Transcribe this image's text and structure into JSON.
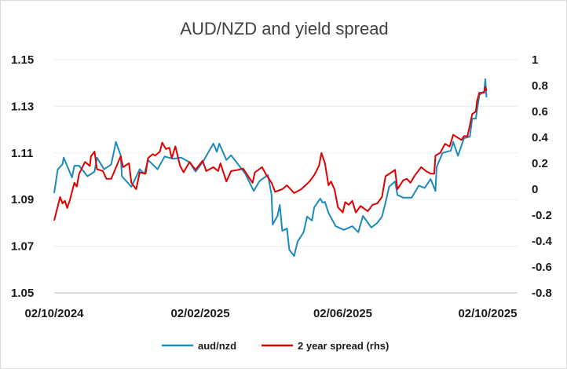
{
  "chart_data": {
    "type": "line",
    "title": "AUD/NZD and yield spread",
    "x_unit": "days since 02/10/2024",
    "x_ticks": [
      {
        "day": 0,
        "label": "02/10/2024"
      },
      {
        "day": 123,
        "label": "02/02/2025"
      },
      {
        "day": 243,
        "label": "02/06/2025"
      },
      {
        "day": 365,
        "label": "02/10/2025"
      }
    ],
    "xlim": [
      0,
      365
    ],
    "y_left": {
      "ylim": [
        1.05,
        1.15
      ],
      "ticks": [
        "1.05",
        "1.07",
        "1.09",
        "1.11",
        "1.13",
        "1.15"
      ],
      "tick_values": [
        1.05,
        1.07,
        1.09,
        1.11,
        1.13,
        1.15
      ]
    },
    "y_right": {
      "ylim": [
        -0.8,
        1.0
      ],
      "ticks": [
        "-0.8",
        "-0.6",
        "-0.4",
        "-0.2",
        "0",
        "0.2",
        "0.4",
        "0.6",
        "0.8",
        "1"
      ],
      "tick_values": [
        -0.8,
        -0.6,
        -0.4,
        -0.2,
        0,
        0.2,
        0.4,
        0.6,
        0.8,
        1.0
      ]
    },
    "grid": true,
    "legend_position": "bottom",
    "series": [
      {
        "name": "aud/nzd",
        "axis": "left",
        "color": "#1a8bba",
        "x": [
          0,
          3,
          7,
          8,
          15,
          17,
          21,
          28,
          34,
          36,
          42,
          48,
          52,
          56,
          57,
          65,
          72,
          76,
          79,
          87,
          93,
          100,
          107,
          114,
          119,
          125,
          134,
          137,
          139,
          145,
          149,
          155,
          161,
          168,
          173,
          180,
          183,
          184,
          188,
          190,
          192,
          196,
          198,
          202,
          205,
          210,
          213,
          217,
          219,
          224,
          226,
          228,
          231,
          237,
          244,
          251,
          256,
          260,
          267,
          272,
          276,
          279,
          282,
          287,
          289,
          294,
          301,
          307,
          312,
          317,
          321,
          322,
          327,
          334,
          336,
          340,
          345,
          350,
          352,
          355,
          358,
          362,
          363,
          364
        ],
        "y": [
          1.0928,
          1.1029,
          1.1052,
          1.108,
          1.0995,
          1.1045,
          1.1045,
          1.1,
          1.102,
          1.108,
          1.103,
          1.105,
          1.1147,
          1.109,
          1.1,
          1.0955,
          1.103,
          1.101,
          1.107,
          1.103,
          1.1085,
          1.1075,
          1.108,
          1.106,
          1.102,
          1.106,
          1.114,
          1.1105,
          1.114,
          1.107,
          1.109,
          1.105,
          1.101,
          1.0937,
          1.098,
          1.1005,
          1.092,
          1.0793,
          1.083,
          1.0877,
          1.0766,
          1.0776,
          1.0685,
          1.0658,
          1.072,
          1.076,
          1.0827,
          1.081,
          1.0867,
          1.0904,
          1.0887,
          1.089,
          1.0843,
          1.0786,
          1.077,
          1.0786,
          1.076,
          1.083,
          1.078,
          1.08,
          1.0827,
          1.0887,
          1.0955,
          1.0978,
          1.092,
          1.0908,
          1.0908,
          1.096,
          1.095,
          1.0988,
          1.0937,
          1.104,
          1.11,
          1.111,
          1.1147,
          1.1088,
          1.1163,
          1.117,
          1.1247,
          1.1247,
          1.1348,
          1.1365,
          1.1416,
          1.1338
        ]
      },
      {
        "name": "2 year spread (rhs)",
        "axis": "right",
        "color": "#e00000",
        "x": [
          0,
          5,
          7,
          9,
          11,
          13,
          17,
          19,
          21,
          26,
          30,
          31,
          34,
          36,
          41,
          44,
          48,
          56,
          58,
          63,
          65,
          69,
          72,
          77,
          79,
          83,
          85,
          89,
          91,
          94,
          97,
          99,
          102,
          106,
          109,
          114,
          119,
          125,
          128,
          134,
          138,
          140,
          145,
          149,
          155,
          159,
          167,
          169,
          175,
          178,
          183,
          186,
          192,
          196,
          202,
          208,
          215,
          219,
          223,
          225,
          228,
          231,
          233,
          236,
          239,
          243,
          245,
          248,
          251,
          254,
          258,
          264,
          268,
          272,
          276,
          279,
          284,
          287,
          289,
          294,
          297,
          300,
          304,
          309,
          313,
          317,
          320,
          321,
          325,
          329,
          333,
          336,
          343,
          345,
          348,
          352,
          355,
          356,
          358,
          362,
          363,
          364
        ],
        "y": [
          -0.242,
          -0.06,
          -0.11,
          -0.09,
          -0.145,
          -0.09,
          0.05,
          0.02,
          0.12,
          0.21,
          0.18,
          0.255,
          0.29,
          0.155,
          0.14,
          0.08,
          0.08,
          0.255,
          0.17,
          0.2,
          0.05,
          0.0,
          0.13,
          0.12,
          0.24,
          0.27,
          0.26,
          0.29,
          0.36,
          0.31,
          0.32,
          0.24,
          0.33,
          0.18,
          0.13,
          0.21,
          0.15,
          0.22,
          0.14,
          0.17,
          0.14,
          0.2,
          0.06,
          0.14,
          0.15,
          0.16,
          0.05,
          0.13,
          0.17,
          0.12,
          0.05,
          -0.02,
          0.0,
          0.03,
          -0.03,
          0.0,
          0.06,
          0.11,
          0.18,
          0.28,
          0.2,
          0.03,
          0.06,
          0.0,
          -0.14,
          -0.18,
          -0.1,
          -0.12,
          -0.09,
          -0.18,
          -0.13,
          -0.17,
          -0.12,
          -0.11,
          -0.06,
          0.1,
          0.13,
          0.15,
          0.0,
          0.07,
          0.08,
          0.05,
          0.11,
          0.17,
          0.14,
          0.12,
          0.12,
          0.26,
          0.28,
          0.35,
          0.33,
          0.42,
          0.38,
          0.41,
          0.41,
          0.58,
          0.6,
          0.68,
          0.745,
          0.745,
          0.79,
          0.76
        ]
      }
    ]
  }
}
